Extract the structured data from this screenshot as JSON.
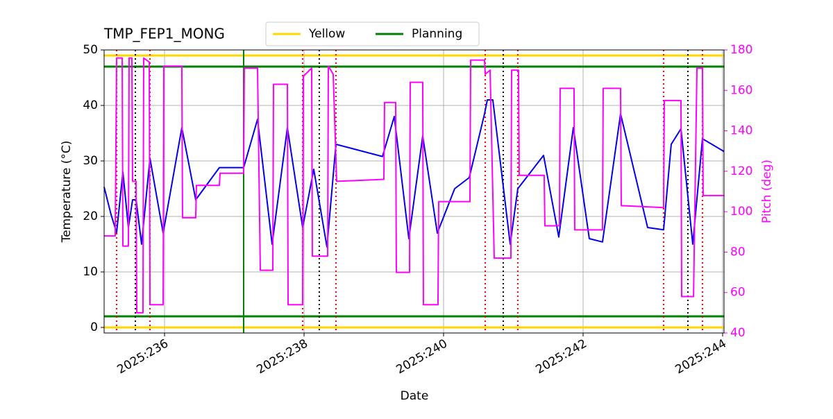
{
  "chart_data": {
    "type": "line",
    "title": "TMP_FEP1_MONG",
    "xlabel": "Date",
    "ylabel": "Temperature (°C)",
    "y2label": "Pitch (deg)",
    "xlim": [
      235.134,
      244.02
    ],
    "ylim": [
      -1,
      50
    ],
    "y2lim": [
      40,
      180
    ],
    "xticks": [
      {
        "value": 236,
        "label": "2025:236"
      },
      {
        "value": 238,
        "label": "2025:238"
      },
      {
        "value": 240,
        "label": "2025:240"
      },
      {
        "value": 242,
        "label": "2025:242"
      },
      {
        "value": 244,
        "label": "2025:244"
      }
    ],
    "yticks": [
      0,
      10,
      20,
      30,
      40,
      50
    ],
    "y2ticks": [
      40,
      60,
      80,
      100,
      120,
      140,
      160,
      180
    ],
    "grid": true,
    "y2color": "#ff00ff",
    "legend": "upper center outside",
    "limits": [
      {
        "name": "Yellow",
        "color": "#ffd700",
        "values": [
          49,
          0
        ]
      },
      {
        "name": "Planning",
        "color": "#008000",
        "values": [
          47,
          2
        ]
      }
    ],
    "vlines": [
      {
        "color": "#ff0000",
        "style": "dotted",
        "x": [
          235.313,
          235.791,
          237.98,
          238.457,
          240.597,
          241.064,
          243.154,
          243.711
        ]
      },
      {
        "color": "#000000",
        "style": "dotted",
        "x": [
          235.582,
          238.218,
          240.855,
          243.502
        ]
      },
      {
        "color": "#008000",
        "style": "solid",
        "x": [
          237.134
        ]
      }
    ],
    "series": [
      {
        "color": "#0000ee",
        "axis": "y",
        "x": [
          235.134,
          235.234,
          235.313,
          235.403,
          235.482,
          235.542,
          235.592,
          235.671,
          235.791,
          235.98,
          236.248,
          236.447,
          236.786,
          237.134,
          237.333,
          237.542,
          237.761,
          237.98,
          238.139,
          238.328,
          238.457,
          239.124,
          239.293,
          239.502,
          239.701,
          239.91,
          240.159,
          240.368,
          240.587,
          240.627,
          240.706,
          240.955,
          241.064,
          241.433,
          241.651,
          241.86,
          242.089,
          242.278,
          242.537,
          242.925,
          243.154,
          243.263,
          243.403,
          243.572,
          243.711,
          244.02
        ],
        "values": [
          25.3,
          20.3,
          17.1,
          28,
          18,
          23,
          23,
          15,
          30.5,
          17,
          36,
          23,
          28.8,
          28.8,
          37.5,
          15,
          36,
          18,
          28.5,
          14.5,
          33,
          30.8,
          38,
          16,
          34.5,
          17,
          25,
          27,
          38.5,
          41,
          41,
          15,
          25,
          31,
          16.3,
          36,
          16,
          15.4,
          38.5,
          18,
          17.6,
          33,
          35.8,
          15,
          34,
          31.7
        ]
      },
      {
        "color": "#ff00ff",
        "axis": "y2",
        "x": [
          235.134,
          235.293,
          235.313,
          235.393,
          235.403,
          235.482,
          235.492,
          235.532,
          235.542,
          235.592,
          235.602,
          235.691,
          235.701,
          235.781,
          235.791,
          235.98,
          235.99,
          236.248,
          236.258,
          236.447,
          236.457,
          236.786,
          236.796,
          237.134,
          237.144,
          237.333,
          237.373,
          237.552,
          237.562,
          237.761,
          237.771,
          237.98,
          237.99,
          238.109,
          238.119,
          238.338,
          238.348,
          238.418,
          238.467,
          239.144,
          239.154,
          239.313,
          239.323,
          239.512,
          239.522,
          239.701,
          239.711,
          239.92,
          239.93,
          240.378,
          240.388,
          240.587,
          240.597,
          240.667,
          240.726,
          240.965,
          240.975,
          241.074,
          241.084,
          241.442,
          241.452,
          241.661,
          241.671,
          241.87,
          241.88,
          242.278,
          242.288,
          242.537,
          242.547,
          243.154,
          243.164,
          243.403,
          243.413,
          243.583,
          243.632,
          243.711,
          243.721,
          244.02
        ],
        "values": [
          88,
          88,
          176,
          176,
          83,
          83,
          176,
          176,
          115,
          115,
          50,
          50,
          176,
          174,
          54,
          54,
          172,
          172,
          97,
          97,
          113,
          113,
          119,
          119,
          171,
          171,
          71,
          71,
          163,
          163,
          54,
          54,
          167,
          171,
          78,
          78,
          172,
          168,
          115,
          116,
          154,
          154,
          70,
          70,
          164,
          164,
          54,
          54,
          105,
          105,
          175,
          175,
          168,
          170,
          77,
          77,
          170,
          170,
          118,
          118,
          93,
          93,
          161,
          161,
          91,
          91,
          161,
          161,
          103,
          102,
          155,
          155,
          58,
          58,
          171,
          171,
          108,
          108
        ]
      }
    ]
  }
}
